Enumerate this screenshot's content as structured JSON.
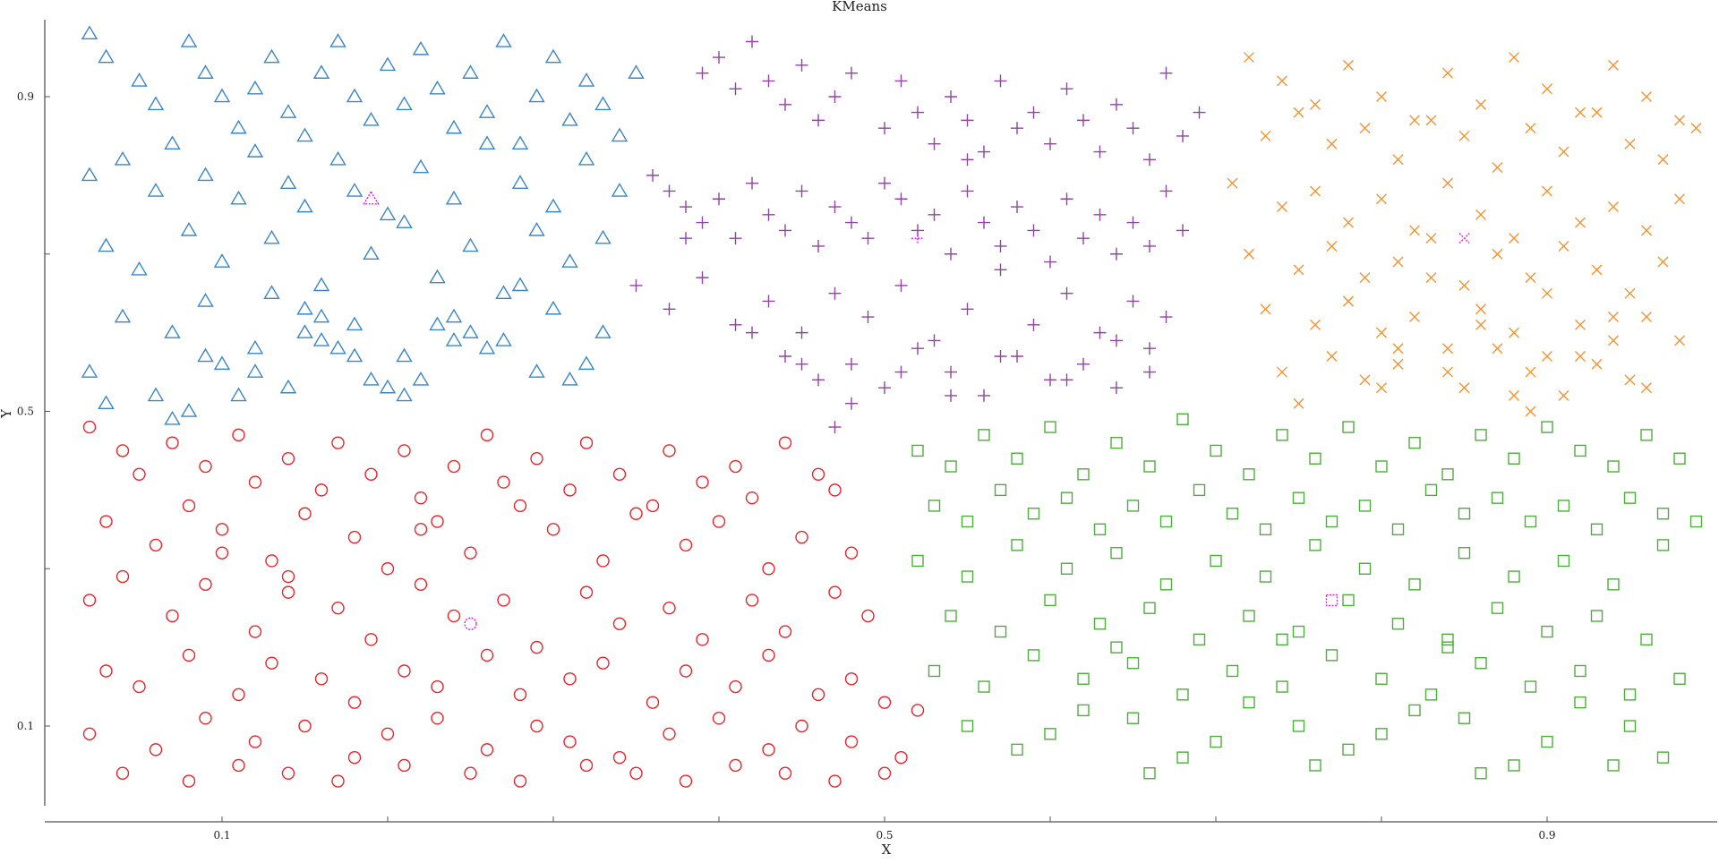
{
  "chart_data": {
    "type": "scatter",
    "title": "KMeans",
    "xlabel": "X",
    "ylabel": "Y",
    "xlim": [
      0.0,
      1.0
    ],
    "ylim": [
      0.0,
      1.0
    ],
    "xticks": [
      0.1,
      0.5,
      0.9
    ],
    "yticks": [
      0.1,
      0.5,
      0.9
    ],
    "xtick_labels": [
      "0.1",
      "0.5",
      "0.9"
    ],
    "ytick_labels": [
      "0.1",
      "0.5",
      "0.9"
    ],
    "grid": false,
    "legend": "none",
    "colors": {
      "cluster_blue": "#3a86c8",
      "cluster_purple": "#8e44a0",
      "cluster_orange": "#f5922f",
      "cluster_red": "#e8242a",
      "cluster_green": "#4caf3a",
      "centroid": "#e81ae8"
    },
    "series": [
      {
        "marker": "triangle",
        "color": "#3a86c8",
        "x": [
          0.02,
          0.03,
          0.05,
          0.06,
          0.08,
          0.09,
          0.1,
          0.11,
          0.12,
          0.13,
          0.14,
          0.15,
          0.16,
          0.17,
          0.18,
          0.19,
          0.2,
          0.21,
          0.22,
          0.23,
          0.24,
          0.25,
          0.26,
          0.27,
          0.28,
          0.29,
          0.3,
          0.31,
          0.32,
          0.33,
          0.34,
          0.35,
          0.02,
          0.04,
          0.06,
          0.07,
          0.09,
          0.11,
          0.12,
          0.14,
          0.15,
          0.17,
          0.18,
          0.2,
          0.22,
          0.24,
          0.26,
          0.28,
          0.3,
          0.32,
          0.34,
          0.03,
          0.05,
          0.08,
          0.1,
          0.13,
          0.16,
          0.19,
          0.21,
          0.23,
          0.25,
          0.27,
          0.29,
          0.31,
          0.33,
          0.04,
          0.07,
          0.09,
          0.12,
          0.15,
          0.18,
          0.21,
          0.24,
          0.27,
          0.3,
          0.33,
          0.02,
          0.06,
          0.1,
          0.14,
          0.18,
          0.22,
          0.26,
          0.29,
          0.13,
          0.16,
          0.19,
          0.23,
          0.28,
          0.32,
          0.08,
          0.11,
          0.17,
          0.2,
          0.25,
          0.31,
          0.03,
          0.07,
          0.12,
          0.16,
          0.21,
          0.24,
          0.15,
          0.09
        ],
        "y": [
          0.98,
          0.95,
          0.92,
          0.89,
          0.97,
          0.93,
          0.9,
          0.86,
          0.91,
          0.95,
          0.88,
          0.85,
          0.93,
          0.97,
          0.9,
          0.87,
          0.94,
          0.89,
          0.96,
          0.91,
          0.86,
          0.93,
          0.88,
          0.97,
          0.84,
          0.9,
          0.95,
          0.87,
          0.92,
          0.89,
          0.85,
          0.93,
          0.8,
          0.82,
          0.78,
          0.84,
          0.8,
          0.77,
          0.83,
          0.79,
          0.76,
          0.82,
          0.78,
          0.75,
          0.81,
          0.77,
          0.84,
          0.79,
          0.76,
          0.82,
          0.78,
          0.71,
          0.68,
          0.73,
          0.69,
          0.72,
          0.66,
          0.7,
          0.74,
          0.67,
          0.71,
          0.65,
          0.73,
          0.69,
          0.72,
          0.62,
          0.6,
          0.64,
          0.58,
          0.63,
          0.61,
          0.57,
          0.62,
          0.59,
          0.63,
          0.6,
          0.55,
          0.52,
          0.56,
          0.53,
          0.57,
          0.54,
          0.58,
          0.55,
          0.65,
          0.59,
          0.54,
          0.61,
          0.66,
          0.56,
          0.5,
          0.52,
          0.58,
          0.53,
          0.6,
          0.54,
          0.51,
          0.49,
          0.55,
          0.62,
          0.52,
          0.59,
          0.6,
          0.57
        ]
      },
      {
        "marker": "plus",
        "color": "#8e44a0",
        "x": [
          0.39,
          0.4,
          0.41,
          0.42,
          0.43,
          0.44,
          0.45,
          0.46,
          0.47,
          0.48,
          0.5,
          0.51,
          0.52,
          0.53,
          0.54,
          0.55,
          0.56,
          0.57,
          0.58,
          0.59,
          0.6,
          0.61,
          0.62,
          0.63,
          0.64,
          0.65,
          0.66,
          0.67,
          0.68,
          0.69,
          0.36,
          0.37,
          0.38,
          0.39,
          0.4,
          0.41,
          0.42,
          0.43,
          0.44,
          0.45,
          0.46,
          0.47,
          0.48,
          0.49,
          0.5,
          0.51,
          0.52,
          0.53,
          0.54,
          0.55,
          0.56,
          0.57,
          0.58,
          0.59,
          0.6,
          0.61,
          0.62,
          0.63,
          0.64,
          0.65,
          0.66,
          0.67,
          0.68,
          0.35,
          0.37,
          0.39,
          0.41,
          0.43,
          0.45,
          0.47,
          0.49,
          0.51,
          0.53,
          0.55,
          0.57,
          0.59,
          0.61,
          0.63,
          0.65,
          0.67,
          0.44,
          0.46,
          0.48,
          0.5,
          0.52,
          0.54,
          0.56,
          0.58,
          0.6,
          0.62,
          0.64,
          0.66,
          0.42,
          0.45,
          0.48,
          0.51,
          0.54,
          0.57,
          0.61,
          0.64,
          0.66,
          0.38,
          0.55,
          0.47
        ],
        "y": [
          0.93,
          0.95,
          0.91,
          0.97,
          0.92,
          0.89,
          0.94,
          0.87,
          0.9,
          0.93,
          0.86,
          0.92,
          0.88,
          0.84,
          0.9,
          0.87,
          0.83,
          0.92,
          0.86,
          0.88,
          0.84,
          0.91,
          0.87,
          0.83,
          0.89,
          0.86,
          0.82,
          0.93,
          0.85,
          0.88,
          0.8,
          0.78,
          0.76,
          0.74,
          0.77,
          0.72,
          0.79,
          0.75,
          0.73,
          0.78,
          0.71,
          0.76,
          0.74,
          0.72,
          0.79,
          0.77,
          0.73,
          0.75,
          0.7,
          0.78,
          0.74,
          0.71,
          0.76,
          0.73,
          0.69,
          0.77,
          0.72,
          0.75,
          0.7,
          0.74,
          0.71,
          0.78,
          0.73,
          0.66,
          0.63,
          0.67,
          0.61,
          0.64,
          0.6,
          0.65,
          0.62,
          0.66,
          0.59,
          0.63,
          0.68,
          0.61,
          0.65,
          0.6,
          0.64,
          0.62,
          0.57,
          0.54,
          0.56,
          0.53,
          0.58,
          0.55,
          0.52,
          0.57,
          0.54,
          0.56,
          0.53,
          0.58,
          0.6,
          0.56,
          0.51,
          0.55,
          0.52,
          0.57,
          0.54,
          0.59,
          0.55,
          0.72,
          0.82,
          0.48
        ]
      },
      {
        "marker": "x",
        "color": "#f5922f",
        "x": [
          0.72,
          0.74,
          0.76,
          0.78,
          0.8,
          0.82,
          0.84,
          0.86,
          0.88,
          0.9,
          0.92,
          0.94,
          0.96,
          0.98,
          0.73,
          0.75,
          0.77,
          0.79,
          0.81,
          0.83,
          0.85,
          0.87,
          0.89,
          0.91,
          0.93,
          0.95,
          0.97,
          0.99,
          0.71,
          0.74,
          0.76,
          0.78,
          0.8,
          0.82,
          0.84,
          0.86,
          0.88,
          0.9,
          0.92,
          0.94,
          0.96,
          0.98,
          0.72,
          0.75,
          0.77,
          0.79,
          0.81,
          0.83,
          0.85,
          0.87,
          0.89,
          0.91,
          0.93,
          0.95,
          0.97,
          0.73,
          0.76,
          0.78,
          0.8,
          0.82,
          0.84,
          0.86,
          0.88,
          0.9,
          0.92,
          0.94,
          0.96,
          0.74,
          0.77,
          0.79,
          0.81,
          0.85,
          0.87,
          0.89,
          0.91,
          0.93,
          0.95,
          0.75,
          0.8,
          0.84,
          0.88,
          0.92,
          0.96,
          0.78,
          0.83,
          0.86,
          0.9,
          0.94,
          0.98,
          0.81,
          0.89
        ],
        "y": [
          0.95,
          0.92,
          0.89,
          0.94,
          0.9,
          0.87,
          0.93,
          0.89,
          0.95,
          0.91,
          0.88,
          0.94,
          0.9,
          0.87,
          0.85,
          0.88,
          0.84,
          0.86,
          0.82,
          0.87,
          0.85,
          0.81,
          0.86,
          0.83,
          0.88,
          0.84,
          0.82,
          0.86,
          0.79,
          0.76,
          0.78,
          0.74,
          0.77,
          0.73,
          0.79,
          0.75,
          0.72,
          0.78,
          0.74,
          0.76,
          0.73,
          0.77,
          0.7,
          0.68,
          0.71,
          0.67,
          0.69,
          0.72,
          0.66,
          0.7,
          0.67,
          0.71,
          0.68,
          0.65,
          0.69,
          0.63,
          0.61,
          0.64,
          0.6,
          0.62,
          0.58,
          0.63,
          0.6,
          0.57,
          0.61,
          0.59,
          0.62,
          0.55,
          0.57,
          0.54,
          0.56,
          0.53,
          0.58,
          0.55,
          0.52,
          0.56,
          0.54,
          0.51,
          0.53,
          0.55,
          0.52,
          0.57,
          0.53,
          0.64,
          0.67,
          0.61,
          0.65,
          0.62,
          0.59,
          0.58,
          0.5
        ]
      },
      {
        "marker": "circle",
        "color": "#e8242a",
        "x": [
          0.02,
          0.04,
          0.05,
          0.07,
          0.09,
          0.11,
          0.12,
          0.14,
          0.16,
          0.17,
          0.19,
          0.21,
          0.22,
          0.24,
          0.26,
          0.27,
          0.29,
          0.31,
          0.32,
          0.34,
          0.36,
          0.37,
          0.39,
          0.41,
          0.42,
          0.44,
          0.46,
          0.47,
          0.03,
          0.06,
          0.08,
          0.1,
          0.13,
          0.15,
          0.18,
          0.2,
          0.23,
          0.25,
          0.28,
          0.3,
          0.33,
          0.35,
          0.38,
          0.4,
          0.43,
          0.45,
          0.48,
          0.02,
          0.04,
          0.07,
          0.09,
          0.12,
          0.14,
          0.17,
          0.19,
          0.22,
          0.24,
          0.27,
          0.29,
          0.32,
          0.34,
          0.37,
          0.39,
          0.42,
          0.44,
          0.47,
          0.49,
          0.03,
          0.05,
          0.08,
          0.11,
          0.13,
          0.16,
          0.18,
          0.21,
          0.23,
          0.26,
          0.28,
          0.31,
          0.33,
          0.36,
          0.38,
          0.41,
          0.43,
          0.46,
          0.48,
          0.5,
          0.02,
          0.06,
          0.09,
          0.12,
          0.15,
          0.18,
          0.2,
          0.23,
          0.26,
          0.29,
          0.31,
          0.34,
          0.37,
          0.4,
          0.43,
          0.45,
          0.48,
          0.51,
          0.52,
          0.04,
          0.08,
          0.11,
          0.14,
          0.17,
          0.21,
          0.25,
          0.28,
          0.32,
          0.35,
          0.38,
          0.41,
          0.44,
          0.47,
          0.5,
          0.22,
          0.14,
          0.1
        ],
        "y": [
          0.48,
          0.45,
          0.42,
          0.46,
          0.43,
          0.47,
          0.41,
          0.44,
          0.4,
          0.46,
          0.42,
          0.45,
          0.39,
          0.43,
          0.47,
          0.41,
          0.44,
          0.4,
          0.46,
          0.42,
          0.38,
          0.45,
          0.41,
          0.43,
          0.39,
          0.46,
          0.42,
          0.4,
          0.36,
          0.33,
          0.38,
          0.35,
          0.31,
          0.37,
          0.34,
          0.3,
          0.36,
          0.32,
          0.38,
          0.35,
          0.31,
          0.37,
          0.33,
          0.36,
          0.3,
          0.34,
          0.32,
          0.26,
          0.29,
          0.24,
          0.28,
          0.22,
          0.27,
          0.25,
          0.21,
          0.28,
          0.24,
          0.26,
          0.2,
          0.27,
          0.23,
          0.25,
          0.21,
          0.26,
          0.22,
          0.27,
          0.24,
          0.17,
          0.15,
          0.19,
          0.14,
          0.18,
          0.16,
          0.13,
          0.17,
          0.15,
          0.19,
          0.14,
          0.16,
          0.18,
          0.13,
          0.17,
          0.15,
          0.19,
          0.14,
          0.16,
          0.13,
          0.09,
          0.07,
          0.11,
          0.08,
          0.1,
          0.06,
          0.09,
          0.11,
          0.07,
          0.1,
          0.08,
          0.06,
          0.09,
          0.11,
          0.07,
          0.1,
          0.08,
          0.06,
          0.12,
          0.04,
          0.03,
          0.05,
          0.04,
          0.03,
          0.05,
          0.04,
          0.03,
          0.05,
          0.04,
          0.03,
          0.05,
          0.04,
          0.03,
          0.04,
          0.35,
          0.29,
          0.32
        ]
      },
      {
        "marker": "square",
        "color": "#4caf3a",
        "x": [
          0.52,
          0.54,
          0.56,
          0.58,
          0.6,
          0.62,
          0.64,
          0.66,
          0.68,
          0.7,
          0.72,
          0.74,
          0.76,
          0.78,
          0.8,
          0.82,
          0.84,
          0.86,
          0.88,
          0.9,
          0.92,
          0.94,
          0.96,
          0.98,
          0.53,
          0.55,
          0.57,
          0.59,
          0.61,
          0.63,
          0.65,
          0.67,
          0.69,
          0.71,
          0.73,
          0.75,
          0.77,
          0.79,
          0.81,
          0.83,
          0.85,
          0.87,
          0.89,
          0.91,
          0.93,
          0.95,
          0.97,
          0.99,
          0.52,
          0.55,
          0.58,
          0.61,
          0.64,
          0.67,
          0.7,
          0.73,
          0.76,
          0.79,
          0.82,
          0.85,
          0.88,
          0.91,
          0.94,
          0.97,
          0.54,
          0.57,
          0.6,
          0.63,
          0.66,
          0.69,
          0.72,
          0.75,
          0.78,
          0.81,
          0.84,
          0.87,
          0.9,
          0.93,
          0.96,
          0.53,
          0.56,
          0.59,
          0.62,
          0.65,
          0.68,
          0.71,
          0.74,
          0.77,
          0.8,
          0.83,
          0.86,
          0.89,
          0.92,
          0.95,
          0.98,
          0.55,
          0.6,
          0.65,
          0.7,
          0.75,
          0.8,
          0.85,
          0.9,
          0.95,
          0.58,
          0.68,
          0.78,
          0.88,
          0.97,
          0.62,
          0.72,
          0.82,
          0.92,
          0.66,
          0.76,
          0.86,
          0.94,
          0.64,
          0.74,
          0.84
        ],
        "y": [
          0.45,
          0.43,
          0.47,
          0.44,
          0.48,
          0.42,
          0.46,
          0.43,
          0.49,
          0.45,
          0.42,
          0.47,
          0.44,
          0.48,
          0.43,
          0.46,
          0.42,
          0.47,
          0.44,
          0.48,
          0.45,
          0.43,
          0.47,
          0.44,
          0.38,
          0.36,
          0.4,
          0.37,
          0.39,
          0.35,
          0.38,
          0.36,
          0.4,
          0.37,
          0.35,
          0.39,
          0.36,
          0.38,
          0.35,
          0.4,
          0.37,
          0.39,
          0.36,
          0.38,
          0.35,
          0.39,
          0.37,
          0.36,
          0.31,
          0.29,
          0.33,
          0.3,
          0.32,
          0.28,
          0.31,
          0.29,
          0.33,
          0.3,
          0.28,
          0.32,
          0.29,
          0.31,
          0.28,
          0.33,
          0.24,
          0.22,
          0.26,
          0.23,
          0.25,
          0.21,
          0.24,
          0.22,
          0.26,
          0.23,
          0.21,
          0.25,
          0.22,
          0.24,
          0.21,
          0.17,
          0.15,
          0.19,
          0.16,
          0.18,
          0.14,
          0.17,
          0.15,
          0.19,
          0.16,
          0.14,
          0.18,
          0.15,
          0.17,
          0.14,
          0.16,
          0.1,
          0.09,
          0.11,
          0.08,
          0.1,
          0.09,
          0.11,
          0.08,
          0.1,
          0.07,
          0.06,
          0.07,
          0.05,
          0.06,
          0.12,
          0.13,
          0.12,
          0.13,
          0.04,
          0.05,
          0.04,
          0.05,
          0.2,
          0.21,
          0.2
        ]
      }
    ],
    "centroids": [
      {
        "x": 0.19,
        "y": 0.77,
        "marker": "triangle",
        "color": "#e81ae8"
      },
      {
        "x": 0.52,
        "y": 0.72,
        "marker": "plus",
        "color": "#e81ae8"
      },
      {
        "x": 0.85,
        "y": 0.72,
        "marker": "x",
        "color": "#e81ae8"
      },
      {
        "x": 0.25,
        "y": 0.23,
        "marker": "circle",
        "color": "#e81ae8"
      },
      {
        "x": 0.77,
        "y": 0.26,
        "marker": "square",
        "color": "#e81ae8"
      }
    ]
  }
}
